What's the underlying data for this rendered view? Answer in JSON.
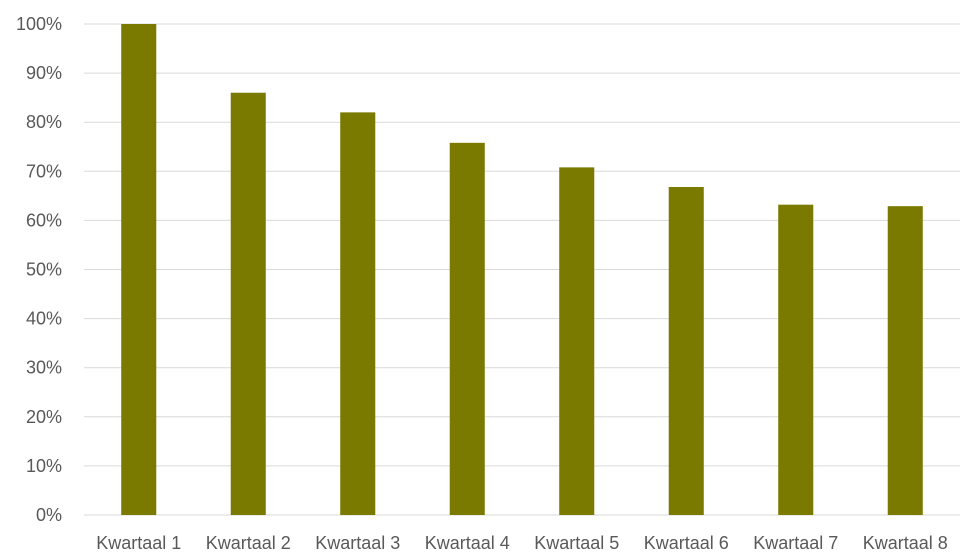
{
  "chart_data": {
    "type": "bar",
    "title": "",
    "xlabel": "",
    "ylabel": "",
    "categories": [
      "Kwartaal 1",
      "Kwartaal 2",
      "Kwartaal 3",
      "Kwartaal 4",
      "Kwartaal 5",
      "Kwartaal 6",
      "Kwartaal 7",
      "Kwartaal 8"
    ],
    "values": [
      100,
      86,
      82,
      75.8,
      70.8,
      66.8,
      63.2,
      62.9
    ],
    "ylim": [
      0,
      100
    ],
    "yticks": [
      0,
      10,
      20,
      30,
      40,
      50,
      60,
      70,
      80,
      90,
      100
    ],
    "ytick_labels": [
      "0%",
      "10%",
      "20%",
      "30%",
      "40%",
      "50%",
      "60%",
      "70%",
      "80%",
      "90%",
      "100%"
    ],
    "grid": "horizontal",
    "legend": "none",
    "bar_color": "#7a7a00"
  }
}
